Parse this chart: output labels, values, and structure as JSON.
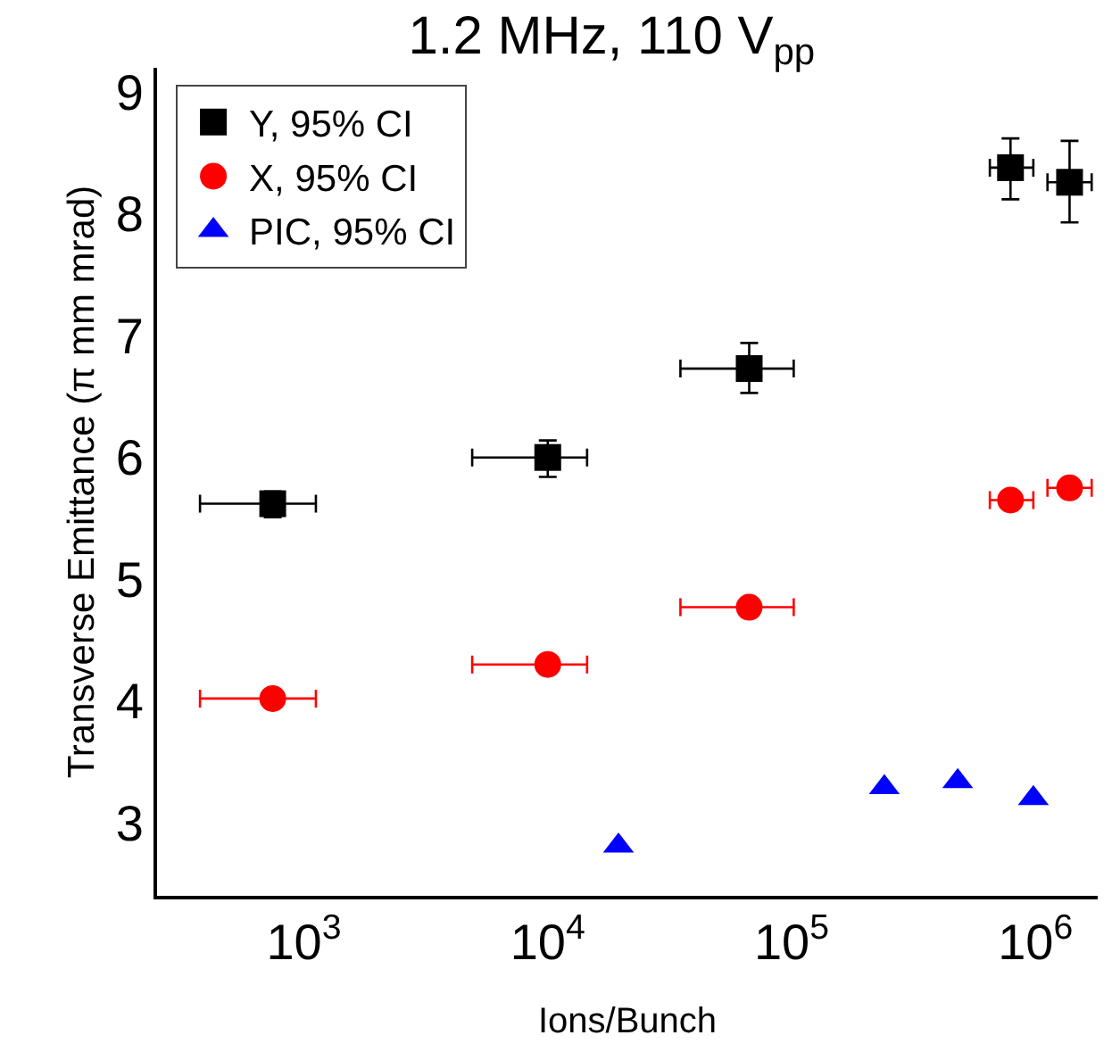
{
  "chart_data": {
    "type": "scatter",
    "title": "1.2 MHz, 110 V$_{pp}$",
    "xlabel": "Ions/Bunch",
    "ylabel": "Transverse Emittance (π mm mrad)",
    "log": "x",
    "legend": "top left",
    "xlim": [
      250,
      1800000
    ],
    "xticks": [
      {
        "value": 1000,
        "label": "10$^{3}$"
      },
      {
        "value": 10000,
        "label": "10$^{4}$"
      },
      {
        "value": 100000,
        "label": "10$^{5}$"
      },
      {
        "value": 1000000,
        "label": "10$^{6}$"
      }
    ],
    "ylim": [
      2.4,
      9.2
    ],
    "yticks": [
      3,
      4,
      5,
      6,
      7,
      8,
      9
    ],
    "series": [
      {
        "name": "Y, 95% CI",
        "color": "#000000",
        "marker": "square",
        "x": [
          745,
          10000,
          67000,
          790000,
          1380000
        ],
        "values": [
          5.62,
          6.0,
          6.73,
          8.38,
          8.26
        ],
        "errors": [
          [
            5.51,
            5.72
          ],
          [
            5.84,
            6.14
          ],
          [
            6.53,
            6.94
          ],
          [
            8.12,
            8.62
          ],
          [
            7.93,
            8.6
          ]
        ],
        "xerrors": [
          [
            375,
            1120
          ],
          [
            4900,
            14500
          ],
          [
            35000,
            102000
          ],
          [
            650000,
            980000
          ],
          [
            1120000,
            1700000
          ]
        ]
      },
      {
        "name": "X, 95% CI",
        "color": "#ff0000",
        "marker": "circle",
        "x": [
          745,
          10000,
          67000,
          790000,
          1380000
        ],
        "values": [
          4.02,
          4.3,
          4.77,
          5.65,
          5.75
        ],
        "xerrors": [
          [
            375,
            1120
          ],
          [
            4900,
            14500
          ],
          [
            35000,
            102000
          ],
          [
            650000,
            980000
          ],
          [
            1120000,
            1700000
          ]
        ]
      },
      {
        "name": "PIC, 95% CI",
        "color": "#0000ff",
        "marker": "triangle",
        "x": [
          19500,
          240000,
          480000,
          980000
        ],
        "values": [
          2.81,
          3.29,
          3.34,
          3.2
        ]
      }
    ]
  }
}
